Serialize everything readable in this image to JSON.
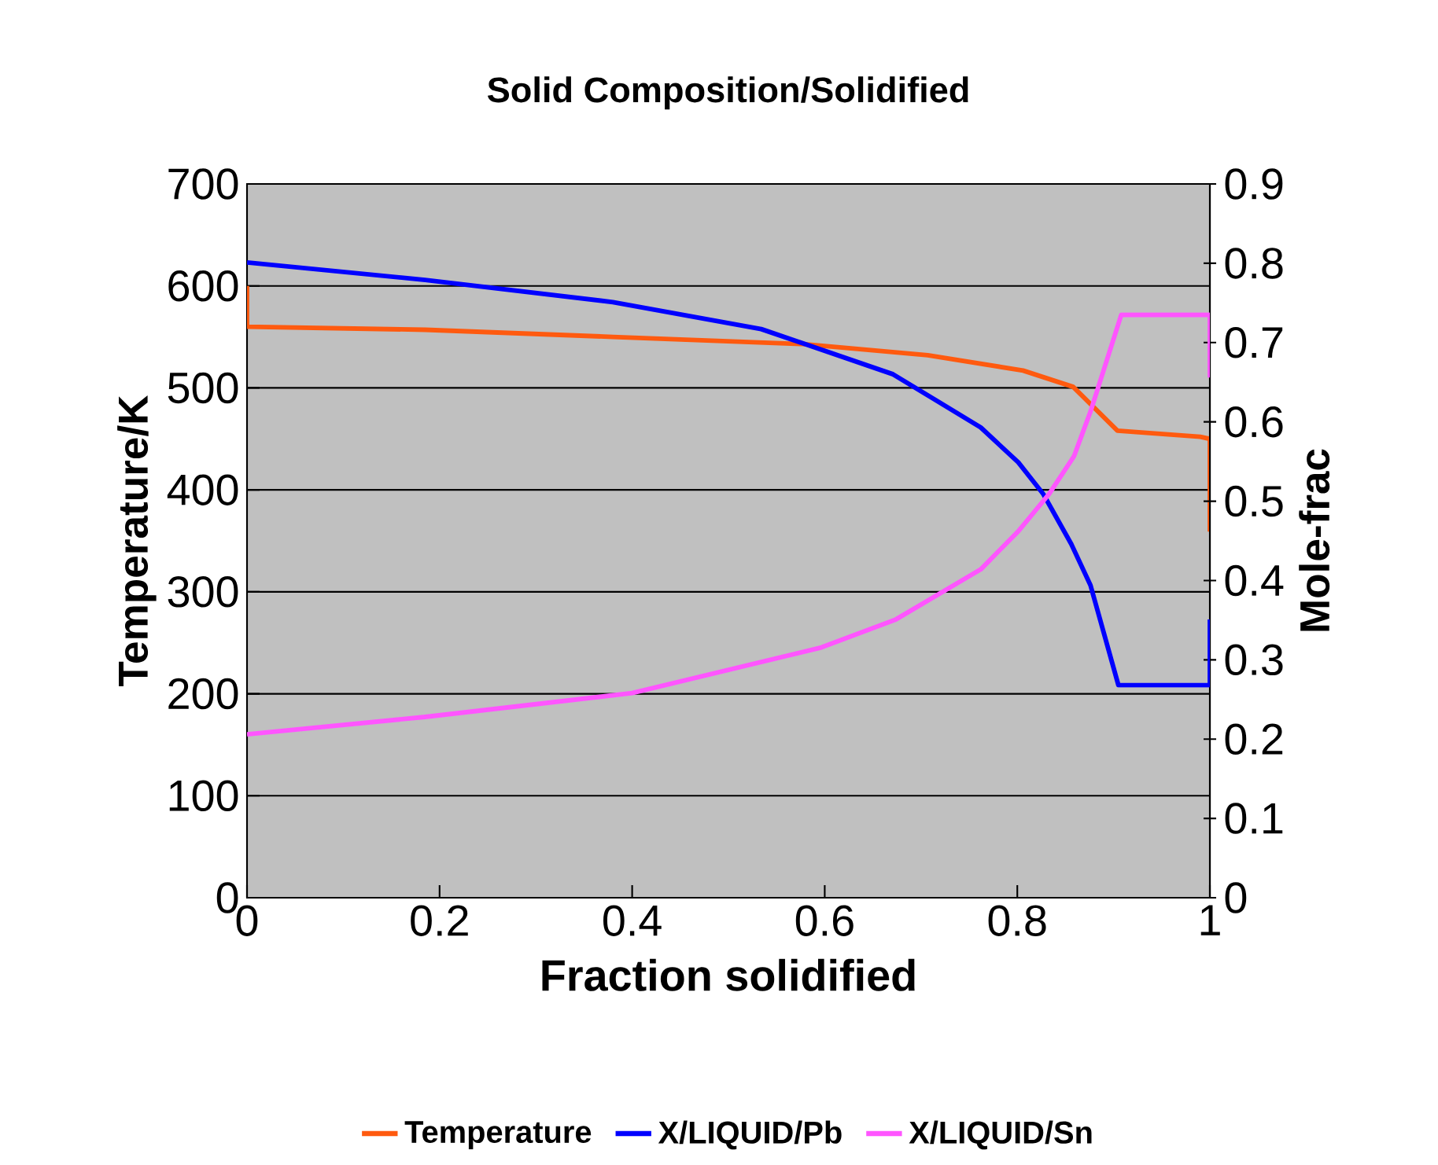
{
  "chart_data": {
    "type": "line",
    "title": "Solid Composition/Solidified",
    "xlabel": "Fraction solidified",
    "ylabel": "Temperature/K",
    "y2label": "Mole-frac",
    "xlim": [
      0,
      1
    ],
    "ylim": [
      0,
      700
    ],
    "y2lim": [
      0,
      0.9
    ],
    "xticks": [
      0,
      0.2,
      0.4,
      0.6,
      0.8,
      1
    ],
    "yticks": [
      0,
      100,
      200,
      300,
      400,
      500,
      600,
      700
    ],
    "y2ticks": [
      0,
      0.1,
      0.2,
      0.3,
      0.4,
      0.5,
      0.6,
      0.7,
      0.8,
      0.9
    ],
    "grid": "y",
    "legend": "bottom",
    "series": [
      {
        "name": "Temperature",
        "color": "#ff5a0f",
        "x": [
          0,
          0,
          0.185,
          0.38,
          0.577,
          0.707,
          0.806,
          0.858,
          0.904,
          0.99,
          1,
          1
        ],
        "values": [
          600,
          560,
          557,
          550,
          543,
          532,
          517,
          501,
          458,
          452,
          450,
          359
        ]
      },
      {
        "name": "X/LIQUID/Pb",
        "color": "#0000ff",
        "axis": "y2",
        "x": [
          0,
          0.185,
          0.38,
          0.534,
          0.671,
          0.762,
          0.801,
          0.827,
          0.856,
          0.876,
          0.905,
          1,
          1
        ],
        "values": [
          0.801,
          0.779,
          0.751,
          0.717,
          0.66,
          0.593,
          0.549,
          0.509,
          0.446,
          0.394,
          0.268,
          0.268,
          0.351
        ]
      },
      {
        "name": "X/LIQUID/Sn",
        "color": "#ff55ff",
        "axis": "y2",
        "x": [
          0,
          0.185,
          0.4,
          0.595,
          0.674,
          0.762,
          0.801,
          0.833,
          0.859,
          0.876,
          0.908,
          1,
          1
        ],
        "values": [
          0.206,
          0.228,
          0.258,
          0.315,
          0.351,
          0.414,
          0.462,
          0.509,
          0.557,
          0.613,
          0.735,
          0.735,
          0.656
        ]
      }
    ]
  }
}
